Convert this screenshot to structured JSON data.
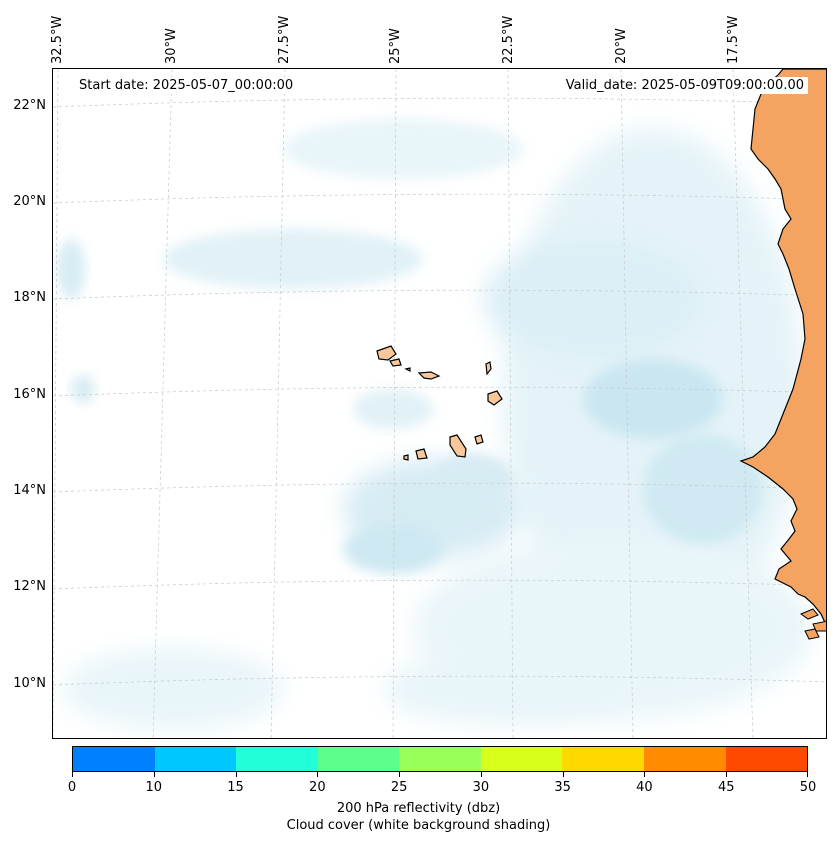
{
  "header": {
    "start_date": "Start date: 2025-05-07_00:00:00",
    "valid_date": "Valid_date: 2025-05-09T09:00:00.00"
  },
  "axes": {
    "longitude_labels": [
      "32.5°W",
      "30°W",
      "27.5°W",
      "25°W",
      "22.5°W",
      "20°W",
      "17.5°W"
    ],
    "latitude_labels": [
      "22°N",
      "20°N",
      "18°N",
      "16°N",
      "14°N",
      "12°N",
      "10°N"
    ]
  },
  "colorbar": {
    "segments": [
      "#0080ff",
      "#00c8ff",
      "#20ffd8",
      "#5cff8c",
      "#98ff58",
      "#d8ff1c",
      "#ffd800",
      "#ff8c00",
      "#ff4800"
    ],
    "tick_labels": [
      "0",
      "10",
      "15",
      "20",
      "25",
      "30",
      "35",
      "40",
      "45",
      "50"
    ],
    "caption": "200 hPa reflectivity (dbz)",
    "subcaption": "Cloud cover (white background shading)"
  },
  "colors": {
    "land": "#f4a460",
    "island_fill": "#f8c89a",
    "cloud": "#add8e6",
    "coast": "#000000",
    "gridline": "#c8c8c8"
  }
}
